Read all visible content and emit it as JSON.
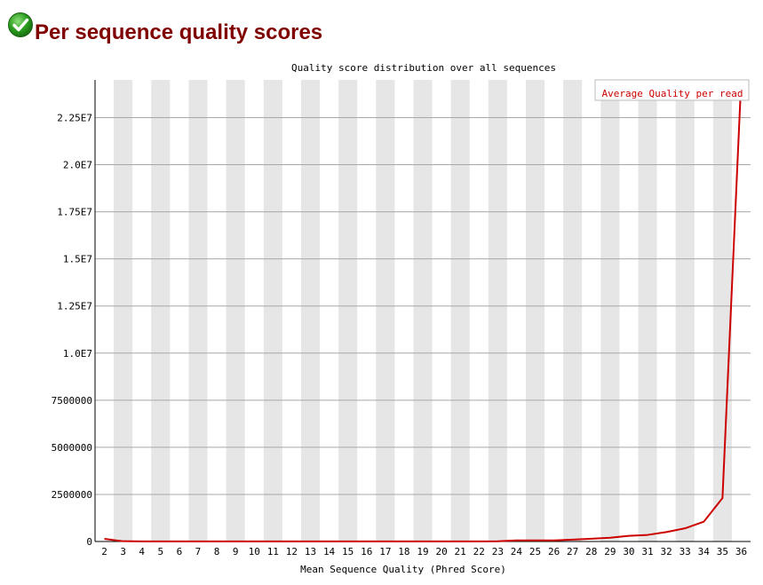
{
  "page": {
    "title": "Per sequence quality scores",
    "status_icon": "check-circle-icon",
    "status_color": "#2a9d1f"
  },
  "chart_data": {
    "type": "line",
    "title": "Quality score distribution over all sequences",
    "xlabel": "Mean Sequence Quality (Phred Score)",
    "ylabel": "",
    "x": [
      2,
      3,
      4,
      5,
      6,
      7,
      8,
      9,
      10,
      11,
      12,
      13,
      14,
      15,
      16,
      17,
      18,
      19,
      20,
      21,
      22,
      23,
      24,
      25,
      26,
      27,
      28,
      29,
      30,
      31,
      32,
      33,
      34,
      35,
      36
    ],
    "ylim": [
      0,
      24500000
    ],
    "yticks": [
      0,
      2500000,
      5000000,
      7500000,
      10000000,
      12500000,
      15000000,
      17500000,
      20000000,
      22500000
    ],
    "ytick_labels": [
      "0",
      "2500000",
      "5000000",
      "7500000",
      "1.0E7",
      "1.25E7",
      "1.5E7",
      "1.75E7",
      "2.0E7",
      "2.25E7"
    ],
    "series": [
      {
        "name": "Average Quality per read",
        "color": "#cc0000",
        "values": [
          140000,
          15000,
          5000,
          5000,
          5000,
          5000,
          5000,
          5000,
          5000,
          5000,
          5000,
          5000,
          5000,
          5000,
          5000,
          5000,
          5000,
          5000,
          5000,
          5000,
          5000,
          10000,
          60000,
          60000,
          60000,
          100000,
          150000,
          200000,
          300000,
          350000,
          500000,
          700000,
          1050000,
          2300000,
          24500000
        ]
      }
    ],
    "grid": true,
    "band_color": "#e6e6e6",
    "legend": "top-right"
  }
}
